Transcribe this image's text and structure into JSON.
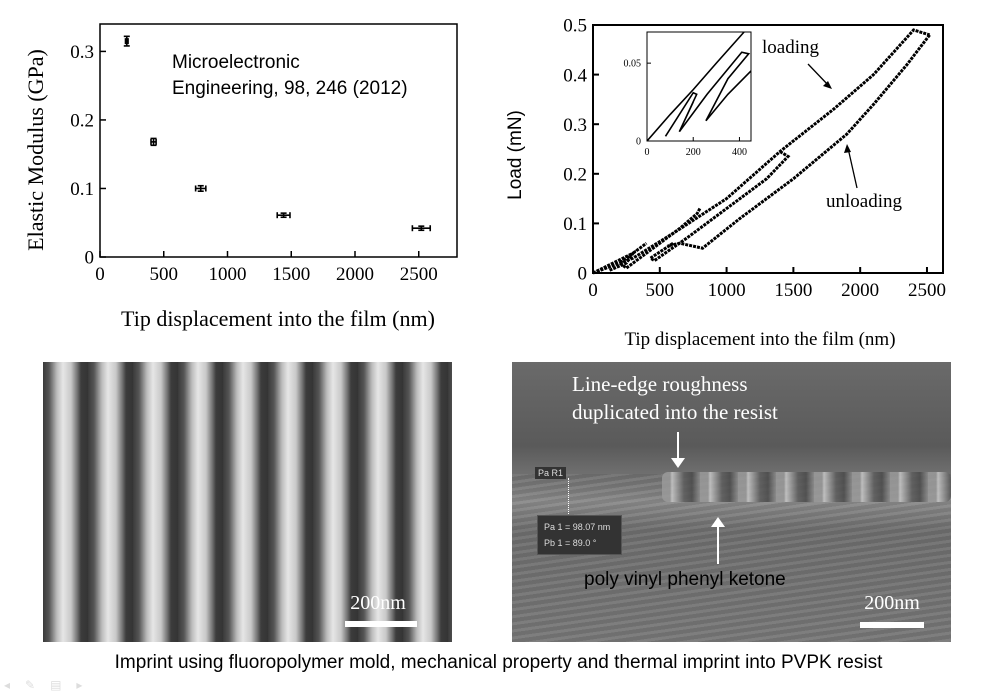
{
  "caption": "Imprint using fluoropolymer mold, mechanical property and thermal imprint into PVPK resist",
  "chart_data": [
    {
      "type": "scatter",
      "xlabel": "Tip displacement into the film (nm)",
      "ylabel": "Elastic Modulus (GPa)",
      "xlim": [
        0,
        2800
      ],
      "ylim": [
        0,
        0.34
      ],
      "xticks": [
        0,
        500,
        1000,
        1500,
        2000,
        2500
      ],
      "yticks": [
        0,
        0.1,
        0.2,
        0.3
      ],
      "annotation": [
        "Microelectronic",
        "Engineering, 98, 246 (2012)"
      ],
      "points": [
        {
          "x": 210,
          "y": 0.315,
          "xerr": 10,
          "yerr": 0.007
        },
        {
          "x": 420,
          "y": 0.168,
          "xerr": 20,
          "yerr": 0.005
        },
        {
          "x": 790,
          "y": 0.1,
          "xerr": 40,
          "yerr": 0.004
        },
        {
          "x": 1440,
          "y": 0.061,
          "xerr": 50,
          "yerr": 0.003
        },
        {
          "x": 2520,
          "y": 0.042,
          "xerr": 70,
          "yerr": 0.003
        }
      ]
    },
    {
      "type": "line",
      "xlabel": "Tip displacement into the film (nm)",
      "ylabel": "Load (mN)",
      "xlim": [
        0,
        2620
      ],
      "ylim": [
        0,
        0.5
      ],
      "xticks": [
        0,
        500,
        1000,
        1500,
        2000,
        2500
      ],
      "yticks": [
        0,
        0.1,
        0.2,
        0.3,
        0.4,
        0.5
      ],
      "annotations": [
        "loading",
        "unloading"
      ],
      "series": [
        {
          "values": [
            [
              0,
              0
            ],
            [
              300,
              0.03
            ],
            [
              600,
              0.08
            ],
            [
              1000,
              0.15
            ],
            [
              1400,
              0.245
            ],
            [
              1800,
              0.33
            ],
            [
              2100,
              0.4
            ],
            [
              2400,
              0.49
            ],
            [
              2520,
              0.48
            ]
          ]
        },
        {
          "values": [
            [
              2520,
              0.48
            ],
            [
              2350,
              0.42
            ],
            [
              2100,
              0.34
            ],
            [
              1900,
              0.28
            ],
            [
              1500,
              0.19
            ],
            [
              1100,
              0.11
            ],
            [
              820,
              0.05
            ],
            [
              650,
              0.06
            ],
            [
              560,
              0.055
            ]
          ]
        },
        {
          "values": [
            [
              1400,
              0.245
            ],
            [
              1460,
              0.235
            ],
            [
              1300,
              0.19
            ],
            [
              1000,
              0.13
            ],
            [
              700,
              0.07
            ],
            [
              460,
              0.025
            ],
            [
              430,
              0.03
            ],
            [
              600,
              0.06
            ]
          ]
        },
        {
          "values": [
            [
              800,
              0.13
            ],
            [
              780,
              0.12
            ],
            [
              650,
              0.09
            ],
            [
              450,
              0.05
            ],
            [
              250,
              0.01
            ],
            [
              200,
              0.02
            ],
            [
              400,
              0.06
            ]
          ]
        },
        {
          "values": [
            [
              0,
              0
            ],
            [
              150,
              0.02
            ],
            [
              300,
              0.04
            ],
            [
              250,
              0.02
            ],
            [
              120,
              0.005
            ]
          ]
        }
      ],
      "inset": {
        "xlim": [
          0,
          450
        ],
        "ylim": [
          0,
          0.07
        ],
        "xticks": [
          0,
          200,
          400
        ],
        "yticks": [
          0,
          0.05
        ],
        "series": [
          {
            "values": [
              [
                0,
                0
              ],
              [
                100,
                0.017
              ],
              [
                200,
                0.033
              ],
              [
                300,
                0.05
              ],
              [
                420,
                0.07
              ]
            ]
          },
          {
            "values": [
              [
                80,
                0.003
              ],
              [
                200,
                0.031
              ],
              [
                215,
                0.03
              ],
              [
                140,
                0.006
              ],
              [
                200,
                0.025
              ]
            ]
          },
          {
            "values": [
              [
                140,
                0.006
              ],
              [
                260,
                0.03
              ],
              [
                410,
                0.057
              ],
              [
                440,
                0.056
              ],
              [
                350,
                0.04
              ],
              [
                255,
                0.013
              ]
            ]
          },
          {
            "values": [
              [
                255,
                0.013
              ],
              [
                350,
                0.03
              ],
              [
                450,
                0.045
              ]
            ]
          }
        ]
      }
    }
  ],
  "sem_left": {
    "scale_label": "200nm"
  },
  "sem_right": {
    "annotation_top": [
      "Line-edge roughness",
      "duplicated into the resist"
    ],
    "annotation_bottom": "poly vinyl phenyl ketone",
    "scale_label": "200nm",
    "measure_tag": "Pa R1",
    "measure_lines": [
      "Pa 1 = 98.07 nm",
      "Pb 1 =  89.0 °"
    ]
  }
}
